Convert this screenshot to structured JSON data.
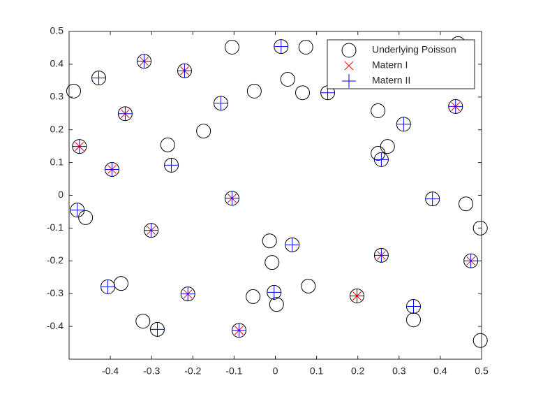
{
  "chart_data": {
    "type": "scatter",
    "xlim": [
      -0.5,
      0.5
    ],
    "ylim": [
      -0.5,
      0.5
    ],
    "xticks": [
      -0.4,
      -0.3,
      -0.2,
      -0.1,
      0,
      0.1,
      0.2,
      0.3,
      0.4,
      0.5
    ],
    "yticks": [
      -0.4,
      -0.3,
      -0.2,
      -0.1,
      0,
      0.1,
      0.2,
      0.3,
      0.4,
      0.5
    ],
    "legend": "northeast",
    "series": [
      {
        "name": "Underlying Poisson",
        "color": "#000000",
        "marker": "o",
        "x": [
          -0.489,
          -0.475,
          -0.428,
          -0.48,
          -0.46,
          -0.364,
          -0.318,
          -0.396,
          -0.261,
          -0.252,
          -0.22,
          -0.174,
          -0.132,
          -0.105,
          -0.051,
          -0.105,
          -0.301,
          -0.406,
          -0.374,
          -0.321,
          -0.286,
          -0.212,
          -0.088,
          -0.054,
          -0.014,
          -0.008,
          -0.003,
          0.003,
          0.041,
          0.08,
          0.014,
          0.074,
          0.03,
          0.066,
          0.127,
          0.198,
          0.249,
          0.249,
          0.257,
          0.272,
          0.311,
          0.257,
          0.335,
          0.335,
          0.381,
          0.437,
          0.443,
          0.462,
          0.474,
          0.497,
          0.497
        ],
        "values": [
          0.318,
          0.149,
          0.358,
          -0.045,
          -0.068,
          0.249,
          0.409,
          0.079,
          0.154,
          0.092,
          0.38,
          0.196,
          0.281,
          0.452,
          0.318,
          -0.009,
          -0.107,
          -0.279,
          -0.269,
          -0.384,
          -0.409,
          -0.301,
          -0.412,
          -0.309,
          -0.139,
          -0.205,
          -0.296,
          -0.333,
          -0.151,
          -0.277,
          0.454,
          0.452,
          0.354,
          0.313,
          0.313,
          -0.307,
          0.258,
          0.128,
          0.109,
          0.149,
          0.217,
          -0.183,
          -0.38,
          -0.339,
          -0.011,
          0.271,
          0.463,
          -0.026,
          -0.2,
          -0.1,
          -0.443
        ]
      },
      {
        "name": "Matern I",
        "color": "#ff0000",
        "marker": "x",
        "x": [
          -0.475,
          -0.364,
          -0.318,
          -0.396,
          -0.22,
          -0.105,
          -0.301,
          -0.212,
          -0.088,
          0.198,
          0.257,
          0.437,
          0.474
        ],
        "values": [
          0.149,
          0.249,
          0.409,
          0.079,
          0.38,
          -0.009,
          -0.107,
          -0.301,
          -0.412,
          -0.307,
          -0.183,
          0.271,
          -0.2
        ]
      },
      {
        "name": "Matern II",
        "color": "#0000ff",
        "marker": "+",
        "x": [
          -0.475,
          -0.364,
          -0.318,
          -0.396,
          -0.22,
          -0.105,
          -0.301,
          -0.212,
          -0.088,
          0.198,
          0.257,
          0.437,
          0.474,
          -0.428,
          -0.48,
          -0.252,
          -0.132,
          -0.406,
          -0.286,
          -0.003,
          0.041,
          0.014,
          0.127,
          0.257,
          0.311,
          0.335,
          0.381
        ],
        "values": [
          0.149,
          0.249,
          0.409,
          0.079,
          0.38,
          -0.009,
          -0.107,
          -0.301,
          -0.412,
          -0.307,
          -0.183,
          0.271,
          -0.2,
          0.358,
          -0.045,
          0.092,
          0.281,
          -0.279,
          -0.409,
          -0.296,
          -0.151,
          0.454,
          0.313,
          0.109,
          0.217,
          -0.339,
          -0.011
        ]
      }
    ]
  }
}
